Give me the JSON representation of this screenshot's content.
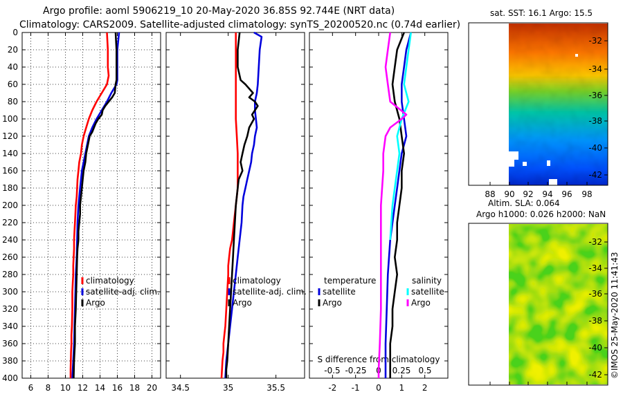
{
  "header": {
    "line1": "Argo profile: aoml 5906219_10 20-May-2020 36.85S 92.744E (NRT data)",
    "line2": "Climatology: CARS2009. Satellite-adjusted climatology: synTS_20200520.nc (0.74d earlier)"
  },
  "sst_map": {
    "title": "sat. SST: 16.1 Argo: 15.5"
  },
  "sla_map": {
    "title1": "Altim. SLA: 0.064",
    "title2": "Argo h1000: 0.026 h2000: NaN"
  },
  "credit": "©IMOS 25-May-2020 11:41:43",
  "colors": {
    "climatology": "#ff0000",
    "satellite": "#0000dd",
    "argo": "#000000",
    "sal_satellite": "#00ffff",
    "sal_argo": "#ff00ff"
  },
  "chart_data": [
    {
      "type": "line",
      "name": "temperature-panel",
      "xlabel": "",
      "ylabel": "",
      "xlim": [
        5,
        21
      ],
      "ylim": [
        400,
        0
      ],
      "xticks": [
        6,
        8,
        10,
        12,
        14,
        16,
        18,
        20
      ],
      "yticks": [
        0,
        20,
        40,
        60,
        80,
        100,
        120,
        140,
        160,
        180,
        200,
        220,
        240,
        260,
        280,
        300,
        320,
        340,
        360,
        380,
        400
      ],
      "grid": true,
      "legend": [
        "climatology",
        "satellite-adj. clim.",
        "Argo"
      ],
      "series": [
        {
          "name": "climatology",
          "color": "#ff0000",
          "x": [
            14.8,
            14.9,
            14.9,
            15.0,
            14.8,
            14.2,
            13.6,
            13.1,
            12.7,
            12.4,
            12.1,
            11.9,
            11.8,
            11.6,
            11.5,
            11.4,
            11.35,
            11.3,
            11.2,
            11.15,
            11.1,
            11.05,
            11.0,
            11.0,
            10.95,
            10.9,
            10.9,
            10.85,
            10.8,
            10.8,
            10.75,
            10.7,
            10.7,
            10.65,
            10.6,
            10.6
          ],
          "y": [
            0,
            20,
            40,
            50,
            60,
            70,
            80,
            90,
            100,
            110,
            120,
            130,
            140,
            150,
            160,
            170,
            180,
            190,
            200,
            210,
            220,
            230,
            240,
            250,
            260,
            270,
            280,
            290,
            300,
            320,
            340,
            350,
            360,
            370,
            390,
            400
          ]
        },
        {
          "name": "satellite-adj. clim.",
          "color": "#0000dd",
          "x": [
            16.2,
            16.0,
            16.0,
            16.0,
            15.9,
            15.3,
            14.8,
            14.2,
            13.6,
            13.1,
            12.7,
            12.5,
            12.3,
            12.1,
            11.9,
            11.8,
            11.7,
            11.6,
            11.5,
            11.4,
            11.35,
            11.3,
            11.2,
            11.15,
            11.1,
            11.05,
            11.0,
            10.95,
            10.9,
            10.85,
            10.8
          ],
          "y": [
            0,
            20,
            40,
            55,
            60,
            70,
            80,
            90,
            100,
            110,
            120,
            130,
            140,
            150,
            160,
            170,
            180,
            190,
            200,
            220,
            240,
            260,
            280,
            300,
            320,
            340,
            360,
            370,
            380,
            390,
            400
          ]
        },
        {
          "name": "Argo",
          "color": "#000000",
          "x": [
            15.8,
            15.9,
            15.9,
            15.9,
            15.8,
            15.7,
            15.4,
            15.0,
            14.6,
            14.3,
            14.2,
            13.8,
            13.5,
            13.3,
            13.1,
            12.8,
            12.6,
            12.4,
            12.3,
            12.1,
            12.0,
            11.9,
            11.8,
            11.7,
            11.7,
            11.6,
            11.5,
            11.5,
            11.4,
            11.35,
            11.3,
            11.25,
            11.2,
            11.1,
            11.1,
            11.05,
            11.0,
            10.95
          ],
          "y": [
            0,
            20,
            40,
            55,
            60,
            70,
            75,
            80,
            85,
            90,
            95,
            100,
            105,
            110,
            115,
            120,
            130,
            140,
            150,
            160,
            170,
            180,
            190,
            200,
            210,
            220,
            230,
            240,
            250,
            260,
            280,
            300,
            320,
            340,
            360,
            370,
            380,
            400
          ]
        }
      ]
    },
    {
      "type": "line",
      "name": "salinity-panel",
      "xlabel": "",
      "ylabel": "",
      "xlim": [
        34.35,
        35.8
      ],
      "ylim": [
        400,
        0
      ],
      "xticks": [
        34.5,
        35,
        35.5
      ],
      "grid": false,
      "legend": [
        "climatology",
        "satellite-adj. clim.",
        "Argo"
      ],
      "series": [
        {
          "name": "climatology",
          "color": "#ff0000",
          "x": [
            35.08,
            35.08,
            35.08,
            35.08,
            35.08,
            35.08,
            35.09,
            35.1,
            35.1,
            35.1,
            35.1,
            35.09,
            35.08,
            35.07,
            35.06,
            35.05,
            35.04,
            35.02,
            35.01,
            35.0,
            35.0,
            34.99,
            34.98,
            34.97,
            34.96,
            34.95,
            34.95,
            34.94,
            34.93
          ],
          "y": [
            0,
            20,
            40,
            60,
            80,
            100,
            120,
            140,
            160,
            170,
            180,
            190,
            200,
            210,
            220,
            230,
            240,
            250,
            260,
            270,
            280,
            300,
            320,
            340,
            350,
            360,
            370,
            380,
            400
          ]
        },
        {
          "name": "satellite-adj. clim.",
          "color": "#0000dd",
          "x": [
            35.27,
            35.35,
            35.33,
            35.32,
            35.31,
            35.3,
            35.28,
            35.28,
            35.29,
            35.3,
            35.28,
            35.27,
            35.25,
            35.24,
            35.22,
            35.2,
            35.18,
            35.16,
            35.15,
            35.14,
            35.12,
            35.1,
            35.08,
            35.06,
            35.04,
            35.02,
            35.0,
            34.98,
            34.97
          ],
          "y": [
            0,
            5,
            20,
            40,
            60,
            70,
            80,
            90,
            100,
            110,
            120,
            130,
            140,
            150,
            160,
            170,
            180,
            190,
            200,
            220,
            240,
            260,
            280,
            300,
            320,
            340,
            360,
            380,
            400
          ]
        },
        {
          "name": "Argo",
          "color": "#000000",
          "x": [
            35.12,
            35.1,
            35.1,
            35.12,
            35.13,
            35.18,
            35.26,
            35.22,
            35.28,
            35.31,
            35.28,
            35.25,
            35.27,
            35.22,
            35.2,
            35.17,
            35.15,
            35.13,
            35.15,
            35.11,
            35.1,
            35.08,
            35.07,
            35.06,
            35.05,
            35.04,
            35.03,
            35.02,
            35.01,
            35.0,
            34.99,
            34.98,
            34.98
          ],
          "y": [
            0,
            20,
            40,
            50,
            55,
            60,
            70,
            75,
            80,
            85,
            90,
            95,
            100,
            110,
            120,
            130,
            140,
            150,
            160,
            170,
            180,
            200,
            220,
            240,
            260,
            280,
            300,
            320,
            340,
            360,
            380,
            390,
            400
          ]
        }
      ]
    },
    {
      "type": "line",
      "name": "difference-panel",
      "xlabel": "S difference from climatology",
      "xlim": [
        -3,
        3
      ],
      "xticks": [
        -2,
        -1,
        0,
        1,
        2
      ],
      "sec_xticks": [
        "-0.5",
        "-0.25",
        "0",
        "0.25",
        "0.5"
      ],
      "grid": false,
      "legend_titles": [
        "temperature",
        "salinity"
      ],
      "legend": [
        "satellite",
        "Argo",
        "satellite",
        "Argo"
      ],
      "series": [
        {
          "name": "temperature satellite",
          "color": "#0000dd",
          "x": [
            1.4,
            1.2,
            1.1,
            1.0,
            1.0,
            1.1,
            1.2,
            1.0,
            0.9,
            0.8,
            0.7,
            0.6,
            0.5,
            0.45,
            0.4,
            0.35,
            0.3,
            0.3
          ],
          "y": [
            0,
            20,
            40,
            60,
            80,
            100,
            120,
            140,
            160,
            180,
            200,
            220,
            240,
            260,
            280,
            320,
            360,
            400
          ]
        },
        {
          "name": "temperature Argo",
          "color": "#000000",
          "x": [
            1.1,
            0.8,
            0.7,
            0.6,
            0.7,
            0.9,
            1.0,
            1.1,
            1.0,
            1.0,
            0.9,
            0.8,
            0.8,
            0.7,
            0.8,
            0.7,
            0.6,
            0.6,
            0.5,
            0.5,
            0.5
          ],
          "y": [
            0,
            20,
            40,
            60,
            80,
            100,
            120,
            140,
            160,
            180,
            200,
            220,
            240,
            260,
            280,
            300,
            320,
            340,
            360,
            380,
            400
          ]
        },
        {
          "name": "salinity satellite",
          "color": "#00ffff",
          "x": [
            1.4,
            1.3,
            1.2,
            1.1,
            1.3,
            1.0,
            0.8,
            0.9,
            0.8,
            0.7,
            0.6,
            0.55,
            0.5
          ],
          "y": [
            0,
            20,
            40,
            60,
            80,
            100,
            120,
            140,
            160,
            180,
            200,
            220,
            240
          ]
        },
        {
          "name": "salinity Argo",
          "color": "#ff00ff",
          "x": [
            0.5,
            0.4,
            0.3,
            0.4,
            0.5,
            1.2,
            1.0,
            0.5,
            0.3,
            0.2,
            0.2,
            0.1,
            0.1,
            0.1,
            0.1,
            0.05,
            0.0,
            0.0
          ],
          "y": [
            0,
            20,
            40,
            60,
            80,
            95,
            100,
            110,
            120,
            140,
            160,
            200,
            240,
            280,
            320,
            360,
            390,
            400
          ]
        }
      ]
    },
    {
      "type": "heatmap",
      "name": "sst-map",
      "xticks": [
        88,
        90,
        92,
        94,
        96,
        98
      ],
      "yticks": [
        -32,
        -34,
        -36,
        -38,
        -40,
        -42
      ]
    },
    {
      "type": "heatmap",
      "name": "sla-map",
      "yticks": [
        -32,
        -34,
        -36,
        -38,
        -40,
        -42
      ]
    }
  ]
}
